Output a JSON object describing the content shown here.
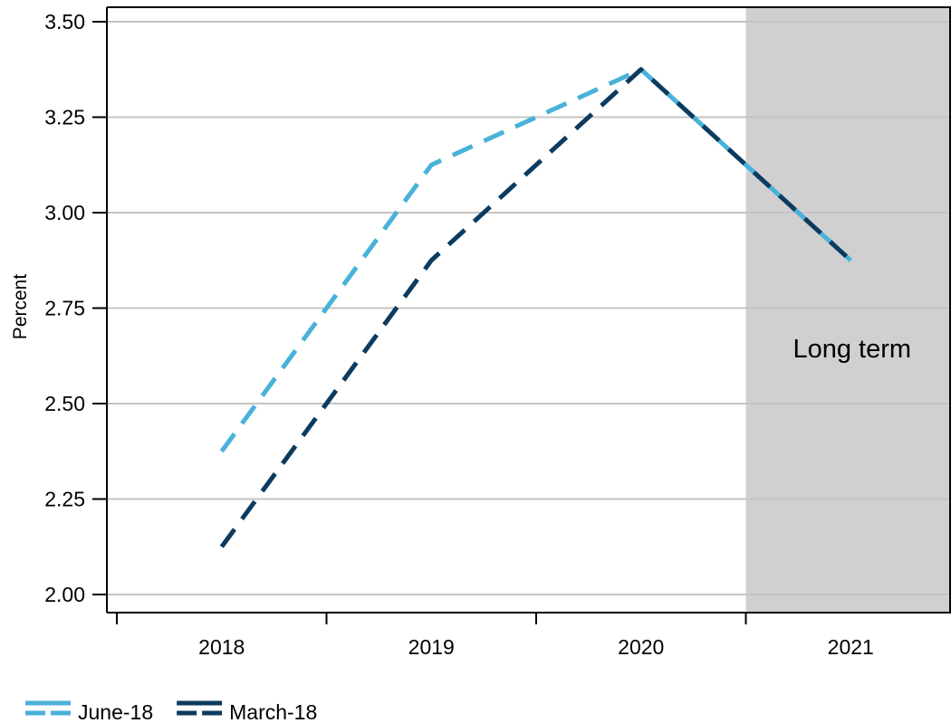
{
  "chart_data": {
    "type": "line",
    "ylabel": "Percent",
    "ylim": [
      2.0,
      3.5
    ],
    "yticks": [
      "2.00",
      "2.25",
      "2.50",
      "2.75",
      "3.00",
      "3.25",
      "3.50"
    ],
    "categories": [
      "2018",
      "2019",
      "2020",
      "2021"
    ],
    "x": [
      2018.0,
      2018.5,
      2019.0,
      2019.5,
      2020.0,
      2020.5,
      2021.0
    ],
    "series": [
      {
        "name": "June-18",
        "color": "#48b2d9",
        "style": "dashed",
        "values": [
          2.375,
          2.75,
          3.125,
          3.25,
          3.375,
          3.125,
          2.875
        ]
      },
      {
        "name": "March-18",
        "color": "#0c3b60",
        "style": "dashed",
        "values": [
          2.125,
          2.5,
          2.875,
          3.125,
          3.375,
          3.125,
          2.875
        ]
      }
    ],
    "shaded_region": {
      "from_category": "2021",
      "label": "Long term",
      "color": "#d0d0d0"
    },
    "grid": "horizontal",
    "legend": "bottom-left"
  }
}
